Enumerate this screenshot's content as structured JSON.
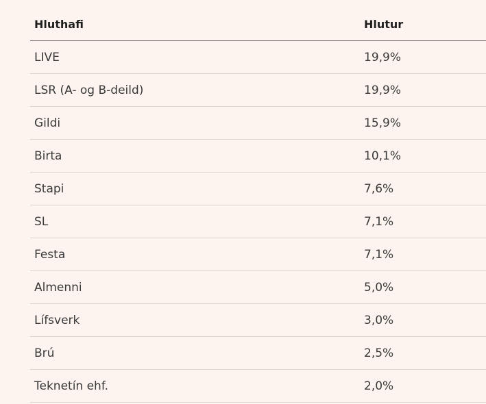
{
  "table": {
    "headers": {
      "holder": "Hluthafi",
      "share": "Hlutur"
    },
    "rows": [
      {
        "holder": "LIVE",
        "share": "19,9%"
      },
      {
        "holder": "LSR (A- og B-deild)",
        "share": "19,9%"
      },
      {
        "holder": "Gildi",
        "share": "15,9%"
      },
      {
        "holder": "Birta",
        "share": "10,1%"
      },
      {
        "holder": "Stapi",
        "share": "7,6%"
      },
      {
        "holder": "SL",
        "share": "7,1%"
      },
      {
        "holder": "Festa",
        "share": "7,1%"
      },
      {
        "holder": "Almenni",
        "share": "5,0%"
      },
      {
        "holder": "Lífsverk",
        "share": "3,0%"
      },
      {
        "holder": "Brú",
        "share": "2,5%"
      },
      {
        "holder": "Teknetín ehf.",
        "share": "2,0%"
      }
    ]
  }
}
